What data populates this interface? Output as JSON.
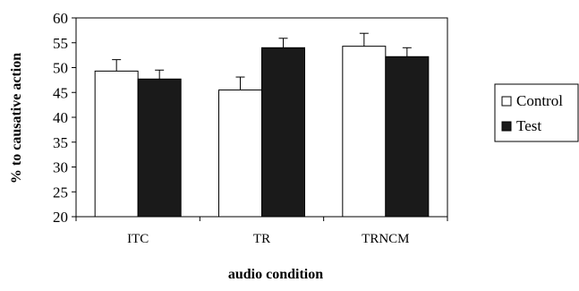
{
  "chart_data": {
    "type": "bar",
    "categories": [
      "ITC",
      "TR",
      "TRNCM"
    ],
    "series": [
      {
        "name": "Control",
        "values": [
          49.3,
          45.5,
          54.3
        ],
        "errors": [
          2.3,
          2.6,
          2.6
        ],
        "color": "#ffffff"
      },
      {
        "name": "Test",
        "values": [
          47.7,
          54.0,
          52.2
        ],
        "errors": [
          1.8,
          1.9,
          1.8
        ],
        "color": "#1a1a1a"
      }
    ],
    "xlabel": "audio condition",
    "ylabel": "% to causative action",
    "ylim": [
      20,
      60
    ],
    "yticks": [
      20,
      25,
      30,
      35,
      40,
      45,
      50,
      55,
      60
    ],
    "grid": false,
    "legend_position": "right"
  }
}
